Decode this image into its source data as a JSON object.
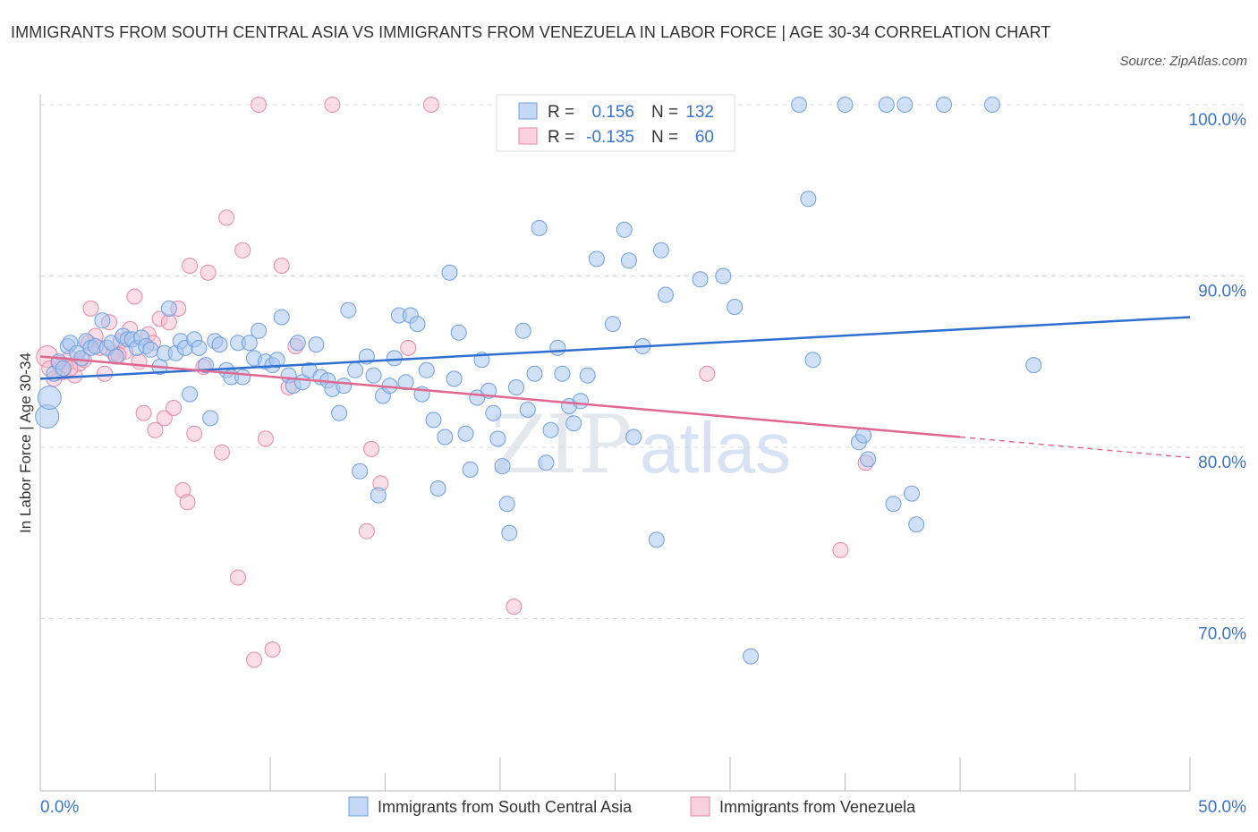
{
  "header": {
    "title": "IMMIGRANTS FROM SOUTH CENTRAL ASIA VS IMMIGRANTS FROM VENEZUELA IN LABOR FORCE | AGE 30-34 CORRELATION CHART",
    "source": "Source: ZipAtlas.com"
  },
  "watermark": {
    "zip": "ZIP",
    "atlas": "atlas"
  },
  "colors": {
    "blue_fill": "#a9c6ef",
    "blue_stroke": "#6f9fe0",
    "blue_line": "#2f6fd0",
    "pink_fill": "#f5bccd",
    "pink_stroke": "#e58aa6",
    "pink_line": "#e06890",
    "axis_label": "#3b74d0",
    "grid": "#d9d9d9"
  },
  "stats_legend": {
    "r_label": "R =",
    "n_label": "N =",
    "blue": {
      "r": "0.156",
      "n": "132"
    },
    "pink": {
      "r": "-0.135",
      "n": "60"
    }
  },
  "chart_data": {
    "type": "scatter",
    "xlabel": "",
    "ylabel": "In Labor Force | Age 30-34",
    "xlim": [
      0,
      50
    ],
    "ylim": [
      60,
      100
    ],
    "x_tick_labels": [
      "0.0%",
      "50.0%"
    ],
    "y_ticks": [
      70,
      80,
      90,
      100
    ],
    "y_tick_labels": [
      "70.0%",
      "80.0%",
      "90.0%",
      "100.0%"
    ],
    "grid": true,
    "legend_position": "bottom",
    "series": [
      {
        "name": "Immigrants from South Central Asia",
        "color": "#a9c6ef",
        "trend": {
          "x": [
            0,
            50
          ],
          "y": [
            84.0,
            87.6
          ]
        },
        "points": [
          [
            0.3,
            81.8
          ],
          [
            0.4,
            82.9
          ],
          [
            0.6,
            84.3
          ],
          [
            0.8,
            85.0
          ],
          [
            1.0,
            84.6
          ],
          [
            1.2,
            85.9
          ],
          [
            1.3,
            86.1
          ],
          [
            1.6,
            85.5
          ],
          [
            1.8,
            85.2
          ],
          [
            2.0,
            86.2
          ],
          [
            2.2,
            85.8
          ],
          [
            2.4,
            85.9
          ],
          [
            2.7,
            87.4
          ],
          [
            2.9,
            85.8
          ],
          [
            3.1,
            86.1
          ],
          [
            3.3,
            85.3
          ],
          [
            3.6,
            86.5
          ],
          [
            3.8,
            86.3
          ],
          [
            4.0,
            86.3
          ],
          [
            4.2,
            85.8
          ],
          [
            4.4,
            86.4
          ],
          [
            4.6,
            85.9
          ],
          [
            4.8,
            85.7
          ],
          [
            5.2,
            84.7
          ],
          [
            5.4,
            85.5
          ],
          [
            5.6,
            88.1
          ],
          [
            5.9,
            85.5
          ],
          [
            6.1,
            86.2
          ],
          [
            6.3,
            85.8
          ],
          [
            6.5,
            83.1
          ],
          [
            6.7,
            86.3
          ],
          [
            6.9,
            85.8
          ],
          [
            7.2,
            84.8
          ],
          [
            7.4,
            81.7
          ],
          [
            7.6,
            86.2
          ],
          [
            7.8,
            86.0
          ],
          [
            8.1,
            84.5
          ],
          [
            8.3,
            84.1
          ],
          [
            8.6,
            86.1
          ],
          [
            8.8,
            84.1
          ],
          [
            9.1,
            86.1
          ],
          [
            9.3,
            85.2
          ],
          [
            9.5,
            86.8
          ],
          [
            9.8,
            85.0
          ],
          [
            10.1,
            84.8
          ],
          [
            10.3,
            85.1
          ],
          [
            10.5,
            87.6
          ],
          [
            10.8,
            84.2
          ],
          [
            11.0,
            83.6
          ],
          [
            11.2,
            86.1
          ],
          [
            11.4,
            83.8
          ],
          [
            11.7,
            84.5
          ],
          [
            12.0,
            86.0
          ],
          [
            12.2,
            84.1
          ],
          [
            12.5,
            83.9
          ],
          [
            12.7,
            83.4
          ],
          [
            13.0,
            82.0
          ],
          [
            13.2,
            83.6
          ],
          [
            13.4,
            88.0
          ],
          [
            13.7,
            84.5
          ],
          [
            13.9,
            78.6
          ],
          [
            14.2,
            85.3
          ],
          [
            14.5,
            84.2
          ],
          [
            14.7,
            77.2
          ],
          [
            14.9,
            83.0
          ],
          [
            15.2,
            83.6
          ],
          [
            15.4,
            85.2
          ],
          [
            15.6,
            87.7
          ],
          [
            15.9,
            83.8
          ],
          [
            16.1,
            87.7
          ],
          [
            16.4,
            87.2
          ],
          [
            16.6,
            83.1
          ],
          [
            16.8,
            84.5
          ],
          [
            17.1,
            81.6
          ],
          [
            17.3,
            77.6
          ],
          [
            17.6,
            80.6
          ],
          [
            17.8,
            90.2
          ],
          [
            18.0,
            84.0
          ],
          [
            18.2,
            86.7
          ],
          [
            18.5,
            80.8
          ],
          [
            18.7,
            78.7
          ],
          [
            19.0,
            82.9
          ],
          [
            19.2,
            85.1
          ],
          [
            19.5,
            83.3
          ],
          [
            19.7,
            82.0
          ],
          [
            19.9,
            80.5
          ],
          [
            20.1,
            78.9
          ],
          [
            20.3,
            76.7
          ],
          [
            20.4,
            75.0
          ],
          [
            20.7,
            83.5
          ],
          [
            21.0,
            86.8
          ],
          [
            21.2,
            82.2
          ],
          [
            21.5,
            84.3
          ],
          [
            21.7,
            92.8
          ],
          [
            22.0,
            79.1
          ],
          [
            22.2,
            81.0
          ],
          [
            22.5,
            85.8
          ],
          [
            22.7,
            84.3
          ],
          [
            23.0,
            82.4
          ],
          [
            23.2,
            81.4
          ],
          [
            23.5,
            82.7
          ],
          [
            23.8,
            84.2
          ],
          [
            24.2,
            91.0
          ],
          [
            24.9,
            87.2
          ],
          [
            25.4,
            92.7
          ],
          [
            25.6,
            90.9
          ],
          [
            25.8,
            80.6
          ],
          [
            26.2,
            85.9
          ],
          [
            26.8,
            74.6
          ],
          [
            27.0,
            91.5
          ],
          [
            27.2,
            88.9
          ],
          [
            28.7,
            89.8
          ],
          [
            29.7,
            90.0
          ],
          [
            30.2,
            88.2
          ],
          [
            30.9,
            67.8
          ],
          [
            33.0,
            100.0
          ],
          [
            33.4,
            94.5
          ],
          [
            33.6,
            85.1
          ],
          [
            35.0,
            100.0
          ],
          [
            35.6,
            80.3
          ],
          [
            35.8,
            80.7
          ],
          [
            36.0,
            79.3
          ],
          [
            36.8,
            100.0
          ],
          [
            37.1,
            76.7
          ],
          [
            37.6,
            100.0
          ],
          [
            37.9,
            77.3
          ],
          [
            38.1,
            75.5
          ],
          [
            39.3,
            100.0
          ],
          [
            41.4,
            100.0
          ],
          [
            43.2,
            84.8
          ],
          [
            21.5,
            100.0
          ],
          [
            24.5,
            100.0
          ]
        ]
      },
      {
        "name": "Immigrants from Venezuela",
        "color": "#f5bccd",
        "trend": {
          "x": [
            0,
            40
          ],
          "y": [
            85.3,
            80.6
          ]
        },
        "trend_dashed": {
          "x": [
            40,
            50
          ],
          "y": [
            80.6,
            79.4
          ]
        },
        "points": [
          [
            0.3,
            85.3
          ],
          [
            0.4,
            84.6
          ],
          [
            0.6,
            84.0
          ],
          [
            0.8,
            84.9
          ],
          [
            1.0,
            84.4
          ],
          [
            1.1,
            84.8
          ],
          [
            1.3,
            85.2
          ],
          [
            1.5,
            84.2
          ],
          [
            1.7,
            84.9
          ],
          [
            1.9,
            85.1
          ],
          [
            2.1,
            86.1
          ],
          [
            2.2,
            88.1
          ],
          [
            2.4,
            86.5
          ],
          [
            2.6,
            85.8
          ],
          [
            2.8,
            84.3
          ],
          [
            3.0,
            87.3
          ],
          [
            3.2,
            85.5
          ],
          [
            3.5,
            86.2
          ],
          [
            3.7,
            85.6
          ],
          [
            3.9,
            86.9
          ],
          [
            4.1,
            88.8
          ],
          [
            4.3,
            85.0
          ],
          [
            4.5,
            82.0
          ],
          [
            4.7,
            86.6
          ],
          [
            4.9,
            86.1
          ],
          [
            5.0,
            81.0
          ],
          [
            5.2,
            87.5
          ],
          [
            5.4,
            81.7
          ],
          [
            5.6,
            87.3
          ],
          [
            5.8,
            82.3
          ],
          [
            6.0,
            88.1
          ],
          [
            6.2,
            77.5
          ],
          [
            6.4,
            76.8
          ],
          [
            6.5,
            90.6
          ],
          [
            6.7,
            80.8
          ],
          [
            7.1,
            84.7
          ],
          [
            7.3,
            90.2
          ],
          [
            7.9,
            79.7
          ],
          [
            8.1,
            93.4
          ],
          [
            8.6,
            72.4
          ],
          [
            8.8,
            91.5
          ],
          [
            9.3,
            67.6
          ],
          [
            9.5,
            100.0
          ],
          [
            9.8,
            80.5
          ],
          [
            10.1,
            68.2
          ],
          [
            10.5,
            90.6
          ],
          [
            10.8,
            83.5
          ],
          [
            11.1,
            85.9
          ],
          [
            12.7,
            100.0
          ],
          [
            14.2,
            75.1
          ],
          [
            14.4,
            79.9
          ],
          [
            14.8,
            77.9
          ],
          [
            16.0,
            85.8
          ],
          [
            17.0,
            100.0
          ],
          [
            20.6,
            70.7
          ],
          [
            29.0,
            84.3
          ],
          [
            34.8,
            74.0
          ],
          [
            35.9,
            79.1
          ],
          [
            1.3,
            84.6
          ],
          [
            3.4,
            85.4
          ]
        ]
      }
    ]
  }
}
